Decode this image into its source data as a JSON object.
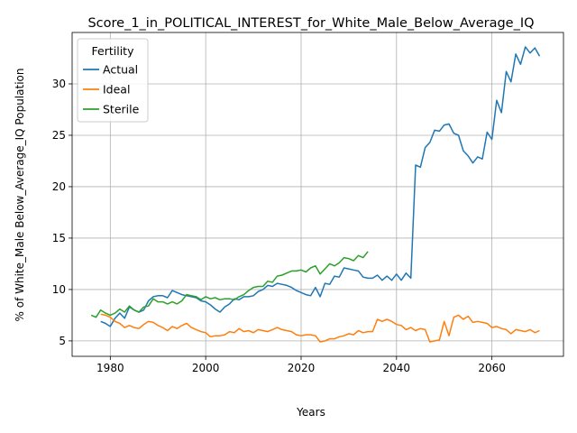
{
  "chart_data": {
    "type": "line",
    "title": "Score_1_in_POLITICAL_INTEREST_for_White_Male_Below_Average_IQ",
    "xlabel": "Years",
    "ylabel": "% of White_Male Below_Average_IQ Population",
    "xlim": [
      1972,
      2075
    ],
    "ylim": [
      3.5,
      35
    ],
    "xticks": [
      1980,
      2000,
      2020,
      2040,
      2060
    ],
    "yticks": [
      5,
      10,
      15,
      20,
      25,
      30
    ],
    "grid": true,
    "legend": {
      "title": "Fertility",
      "placement": "top-left"
    },
    "series": [
      {
        "name": "Actual",
        "color": "#1f77b4",
        "x": [
          1978,
          1979,
          1980,
          1981,
          1982,
          1983,
          1984,
          1985,
          1986,
          1987,
          1988,
          1989,
          1990,
          1991,
          1992,
          1993,
          1994,
          1995,
          1996,
          1997,
          1998,
          1999,
          2000,
          2001,
          2002,
          2003,
          2004,
          2005,
          2006,
          2007,
          2008,
          2009,
          2010,
          2011,
          2012,
          2013,
          2014,
          2015,
          2016,
          2017,
          2018,
          2019,
          2020,
          2021,
          2022,
          2023,
          2024,
          2025,
          2026,
          2027,
          2028,
          2029,
          2030,
          2031,
          2032,
          2033,
          2034,
          2035,
          2036,
          2037,
          2038,
          2039,
          2040,
          2041,
          2042,
          2043,
          2044,
          2045,
          2046,
          2047,
          2048,
          2049,
          2050,
          2051,
          2052,
          2053,
          2054,
          2055,
          2056,
          2057,
          2058,
          2059,
          2060,
          2061,
          2062,
          2063,
          2064,
          2065,
          2066,
          2067,
          2068,
          2069,
          2070
        ],
        "y": [
          6.9,
          6.7,
          6.4,
          7.2,
          7.7,
          7.2,
          8.3,
          8.0,
          7.8,
          8.0,
          8.9,
          9.3,
          9.4,
          9.4,
          9.2,
          9.9,
          9.7,
          9.5,
          9.4,
          9.3,
          9.2,
          8.9,
          8.8,
          8.5,
          8.1,
          7.8,
          8.3,
          8.6,
          9.1,
          9.0,
          9.3,
          9.3,
          9.4,
          9.8,
          10.0,
          10.4,
          10.3,
          10.6,
          10.5,
          10.4,
          10.2,
          9.9,
          9.7,
          9.5,
          9.4,
          10.2,
          9.3,
          10.6,
          10.5,
          11.3,
          11.2,
          12.1,
          12.0,
          11.9,
          11.8,
          11.2,
          11.1,
          11.1,
          11.4,
          10.9,
          11.3,
          10.9,
          11.5,
          10.9,
          11.6,
          11.1,
          22.1,
          21.9,
          23.8,
          24.3,
          25.5,
          25.4,
          26.0,
          26.1,
          25.2,
          25.0,
          23.5,
          23.0,
          22.3,
          22.9,
          22.7,
          25.3,
          24.6,
          28.4,
          27.2,
          31.2,
          30.2,
          32.9,
          31.9,
          33.6,
          33.0,
          33.5,
          32.7
        ]
      },
      {
        "name": "Ideal",
        "color": "#ff7f0e",
        "x": [
          1978,
          1979,
          1980,
          1981,
          1982,
          1983,
          1984,
          1985,
          1986,
          1987,
          1988,
          1989,
          1990,
          1991,
          1992,
          1993,
          1994,
          1995,
          1996,
          1997,
          1998,
          1999,
          2000,
          2001,
          2002,
          2003,
          2004,
          2005,
          2006,
          2007,
          2008,
          2009,
          2010,
          2011,
          2012,
          2013,
          2014,
          2015,
          2016,
          2017,
          2018,
          2019,
          2020,
          2021,
          2022,
          2023,
          2024,
          2025,
          2026,
          2027,
          2028,
          2029,
          2030,
          2031,
          2032,
          2033,
          2034,
          2035,
          2036,
          2037,
          2038,
          2039,
          2040,
          2041,
          2042,
          2043,
          2044,
          2045,
          2046,
          2047,
          2048,
          2049,
          2050,
          2051,
          2052,
          2053,
          2054,
          2055,
          2056,
          2057,
          2058,
          2059,
          2060,
          2061,
          2062,
          2063,
          2064,
          2065,
          2066,
          2067,
          2068,
          2069,
          2070
        ],
        "y": [
          7.6,
          7.5,
          7.3,
          6.9,
          6.7,
          6.3,
          6.5,
          6.3,
          6.2,
          6.6,
          6.9,
          6.8,
          6.5,
          6.3,
          6.0,
          6.4,
          6.2,
          6.5,
          6.7,
          6.3,
          6.1,
          5.9,
          5.8,
          5.4,
          5.5,
          5.5,
          5.6,
          5.9,
          5.8,
          6.2,
          5.9,
          6.0,
          5.8,
          6.1,
          6.0,
          5.9,
          6.1,
          6.3,
          6.1,
          6.0,
          5.9,
          5.6,
          5.5,
          5.6,
          5.6,
          5.5,
          4.9,
          5.0,
          5.2,
          5.2,
          5.4,
          5.5,
          5.7,
          5.6,
          6.0,
          5.8,
          5.9,
          5.9,
          7.1,
          6.9,
          7.1,
          6.9,
          6.6,
          6.5,
          6.1,
          6.3,
          6.0,
          6.2,
          6.1,
          4.9,
          5.0,
          5.1,
          6.9,
          5.5,
          7.3,
          7.5,
          7.1,
          7.4,
          6.8,
          6.9,
          6.8,
          6.7,
          6.3,
          6.4,
          6.2,
          6.1,
          5.7,
          6.1,
          6.0,
          5.9,
          6.1,
          5.8,
          6.0
        ]
      },
      {
        "name": "Sterile",
        "color": "#2ca02c",
        "x": [
          1976,
          1977,
          1978,
          1979,
          1980,
          1981,
          1982,
          1983,
          1984,
          1985,
          1986,
          1987,
          1988,
          1989,
          1990,
          1991,
          1992,
          1993,
          1994,
          1995,
          1996,
          1997,
          1998,
          1999,
          2000,
          2001,
          2002,
          2003,
          2004,
          2005,
          2006,
          2007,
          2008,
          2009,
          2010,
          2011,
          2012,
          2013,
          2014,
          2015,
          2016,
          2017,
          2018,
          2019,
          2020,
          2021,
          2022,
          2023,
          2024,
          2025,
          2026,
          2027,
          2028,
          2029,
          2030,
          2031,
          2032,
          2033,
          2034
        ],
        "y": [
          7.5,
          7.3,
          8.0,
          7.7,
          7.5,
          7.7,
          8.1,
          7.8,
          8.4,
          8.0,
          7.8,
          8.3,
          8.4,
          9.1,
          8.8,
          8.8,
          8.6,
          8.8,
          8.6,
          8.9,
          9.5,
          9.4,
          9.3,
          9.0,
          9.3,
          9.1,
          9.2,
          9.0,
          9.1,
          9.1,
          9.0,
          9.3,
          9.5,
          9.9,
          10.2,
          10.3,
          10.3,
          10.8,
          10.7,
          11.3,
          11.4,
          11.6,
          11.8,
          11.8,
          11.9,
          11.7,
          12.1,
          12.3,
          11.5,
          12.0,
          12.5,
          12.3,
          12.6,
          13.1,
          13.0,
          12.8,
          13.3,
          13.1,
          13.7
        ]
      }
    ]
  }
}
